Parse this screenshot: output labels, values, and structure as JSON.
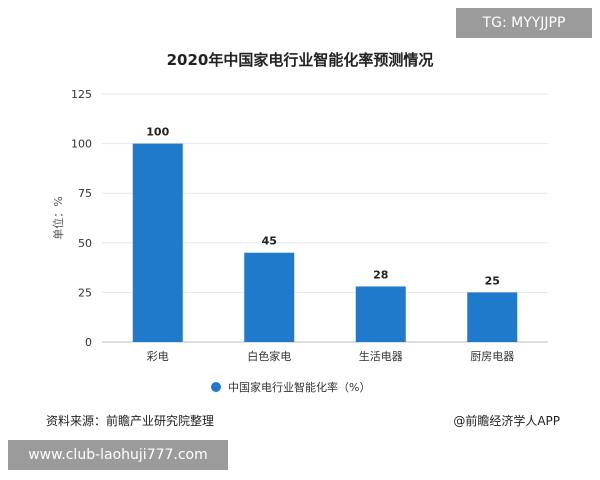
{
  "overlay_tag": "TG: MYYJJPP",
  "footer": {
    "source": "资料来源：前瞻产业研究院整理",
    "brand": "@前瞻经济学人APP"
  },
  "bottom_overlay": "www.club-laohuji777.com",
  "colors": {
    "bar": "#1f7acb",
    "grid": "#e6e6e6",
    "axis": "#bdbdbd",
    "text": "#333333"
  },
  "chart_data": {
    "type": "bar",
    "title": "2020年中国家电行业智能化率预测情况",
    "ylabel": "单位：%",
    "xlabel": "",
    "categories": [
      "彩电",
      "白色家电",
      "生活电器",
      "厨房电器"
    ],
    "series": [
      {
        "name": "中国家电行业智能化率（%）",
        "values": [
          100,
          45,
          28,
          25
        ]
      }
    ],
    "data_labels": [
      "100",
      "45",
      "28",
      "25"
    ],
    "ylim": [
      0,
      125
    ],
    "yticks": [
      0,
      25,
      50,
      75,
      100,
      125
    ],
    "grid": true,
    "legend": "bottom"
  }
}
